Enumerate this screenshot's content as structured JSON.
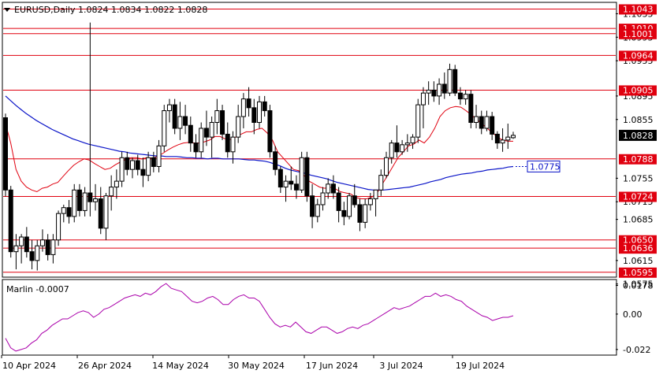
{
  "window": {
    "symbol_header": "EURUSD,Daily  1.0824 1.0834 1.0822 1.0828",
    "dropdown_icon": "triangle-down-icon"
  },
  "indicator": {
    "label": "Marlin -0.0007",
    "axis": [
      "0.0178",
      "0.00",
      "-0.022"
    ]
  },
  "colors": {
    "level_line": "#e0000f",
    "level_tag_bg": "#e0000f",
    "ma_blue": "#0a14c8",
    "ma_red": "#e0000f",
    "oscillator": "#aa00aa",
    "candle": "#000000",
    "price_tag_bg": "#000000",
    "ma_tag_border": "#0a14c8"
  },
  "chart_data": {
    "type": "candlestick",
    "symbol": "EURUSD",
    "timeframe": "Daily",
    "ylim": [
      1.0588,
      1.1053
    ],
    "price_ticks": [
      "1.1035",
      "1.0995",
      "1.0955",
      "1.0895",
      "1.0855",
      "1.0755",
      "1.0715",
      "1.0685",
      "1.0615",
      "1.0575"
    ],
    "x_labels": [
      "10 Apr 2024",
      "26 Apr 2024",
      "14 May 2024",
      "30 May 2024",
      "17 Jun 2024",
      "3 Jul 2024",
      "19 Jul 2024"
    ],
    "levels": [
      {
        "value": 1.1043,
        "label": "1.1043"
      },
      {
        "value": 1.101,
        "label": "1.1010"
      },
      {
        "value": 1.1001,
        "label": "1.1001"
      },
      {
        "value": 1.0964,
        "label": "1.0964"
      },
      {
        "value": 1.0905,
        "label": "1.0905"
      },
      {
        "value": 1.0788,
        "label": "1.0788"
      },
      {
        "value": 1.0724,
        "label": "1.0724"
      },
      {
        "value": 1.065,
        "label": "1.0650"
      },
      {
        "value": 1.0636,
        "label": "1.0636"
      },
      {
        "value": 1.0595,
        "label": "1.0595"
      }
    ],
    "current_price": {
      "value": 1.0828,
      "label": "1.0828"
    },
    "ma_tag": {
      "value": 1.0775,
      "label": "1.0775"
    },
    "candles": [
      [
        1.0858,
        1.0865,
        1.0724,
        1.0735
      ],
      [
        1.0735,
        1.0742,
        1.062,
        1.063
      ],
      [
        1.063,
        1.066,
        1.06,
        1.064
      ],
      [
        1.064,
        1.066,
        1.061,
        1.0655
      ],
      [
        1.0655,
        1.0672,
        1.062,
        1.063
      ],
      [
        1.063,
        1.065,
        1.06,
        1.0615
      ],
      [
        1.0615,
        1.065,
        1.0598,
        1.064
      ],
      [
        1.064,
        1.0668,
        1.063,
        1.065
      ],
      [
        1.065,
        1.066,
        1.0615,
        1.0625
      ],
      [
        1.0625,
        1.066,
        1.061,
        1.065
      ],
      [
        1.065,
        1.07,
        1.064,
        1.0695
      ],
      [
        1.0695,
        1.071,
        1.068,
        1.0705
      ],
      [
        1.0705,
        1.0718,
        1.0678,
        1.069
      ],
      [
        1.069,
        1.0745,
        1.068,
        1.0735
      ],
      [
        1.0735,
        1.0745,
        1.069,
        1.07
      ],
      [
        1.07,
        1.074,
        1.069,
        1.073
      ],
      [
        1.073,
        1.102,
        1.069,
        1.0715
      ],
      [
        1.0715,
        1.0745,
        1.07,
        1.072
      ],
      [
        1.072,
        1.074,
        1.066,
        1.067
      ],
      [
        1.067,
        1.073,
        1.065,
        1.0725
      ],
      [
        1.0725,
        1.076,
        1.07,
        1.074
      ],
      [
        1.074,
        1.077,
        1.072,
        1.075
      ],
      [
        1.075,
        1.08,
        1.074,
        1.079
      ],
      [
        1.079,
        1.08,
        1.076,
        1.077
      ],
      [
        1.077,
        1.079,
        1.0755,
        1.0785
      ],
      [
        1.0785,
        1.0795,
        1.076,
        1.077
      ],
      [
        1.077,
        1.079,
        1.074,
        1.076
      ],
      [
        1.076,
        1.08,
        1.075,
        1.079
      ],
      [
        1.079,
        1.08,
        1.0765,
        1.0775
      ],
      [
        1.0775,
        1.082,
        1.0765,
        1.081
      ],
      [
        1.081,
        1.088,
        1.08,
        1.087
      ],
      [
        1.087,
        1.089,
        1.085,
        1.088
      ],
      [
        1.088,
        1.089,
        1.083,
        1.084
      ],
      [
        1.084,
        1.0885,
        1.082,
        1.086
      ],
      [
        1.086,
        1.088,
        1.083,
        1.0845
      ],
      [
        1.0845,
        1.086,
        1.08,
        1.0815
      ],
      [
        1.0815,
        1.083,
        1.079,
        1.08
      ],
      [
        1.08,
        1.085,
        1.079,
        1.084
      ],
      [
        1.084,
        1.087,
        1.081,
        1.0825
      ],
      [
        1.0825,
        1.086,
        1.079,
        1.085
      ],
      [
        1.085,
        1.089,
        1.083,
        1.087
      ],
      [
        1.087,
        1.088,
        1.082,
        1.083
      ],
      [
        1.083,
        1.085,
        1.079,
        1.08
      ],
      [
        1.08,
        1.0835,
        1.078,
        1.0825
      ],
      [
        1.0825,
        1.088,
        1.0815,
        1.086
      ],
      [
        1.086,
        1.09,
        1.084,
        1.089
      ],
      [
        1.089,
        1.091,
        1.086,
        1.0875
      ],
      [
        1.0875,
        1.089,
        1.083,
        1.085
      ],
      [
        1.085,
        1.0895,
        1.084,
        1.0885
      ],
      [
        1.0885,
        1.0895,
        1.086,
        1.087
      ],
      [
        1.087,
        1.088,
        1.079,
        1.08
      ],
      [
        1.08,
        1.081,
        1.076,
        1.077
      ],
      [
        1.077,
        1.0775,
        1.073,
        1.074
      ],
      [
        1.074,
        1.076,
        1.0715,
        1.075
      ],
      [
        1.075,
        1.0775,
        1.0735,
        1.0745
      ],
      [
        1.0745,
        1.076,
        1.072,
        1.0735
      ],
      [
        1.0735,
        1.08,
        1.073,
        1.079
      ],
      [
        1.079,
        1.08,
        1.0715,
        1.0725
      ],
      [
        1.0725,
        1.0745,
        1.067,
        1.069
      ],
      [
        1.069,
        1.072,
        1.068,
        1.071
      ],
      [
        1.071,
        1.074,
        1.07,
        1.073
      ],
      [
        1.073,
        1.0755,
        1.072,
        1.0745
      ],
      [
        1.0745,
        1.076,
        1.072,
        1.073
      ],
      [
        1.073,
        1.074,
        1.068,
        1.07
      ],
      [
        1.07,
        1.0715,
        1.0675,
        1.069
      ],
      [
        1.069,
        1.073,
        1.0685,
        1.0725
      ],
      [
        1.0725,
        1.0745,
        1.0705,
        1.071
      ],
      [
        1.071,
        1.072,
        1.0665,
        1.068
      ],
      [
        1.068,
        1.072,
        1.067,
        1.071
      ],
      [
        1.071,
        1.073,
        1.07,
        1.072
      ],
      [
        1.072,
        1.0735,
        1.069,
        1.0735
      ],
      [
        1.0735,
        1.077,
        1.0725,
        1.076
      ],
      [
        1.076,
        1.08,
        1.0755,
        1.079
      ],
      [
        1.079,
        1.082,
        1.078,
        1.0815
      ],
      [
        1.0815,
        1.0845,
        1.079,
        1.08
      ],
      [
        1.08,
        1.082,
        1.0795,
        1.0812
      ],
      [
        1.0812,
        1.083,
        1.08,
        1.0815
      ],
      [
        1.0815,
        1.083,
        1.0805,
        1.0825
      ],
      [
        1.0825,
        1.089,
        1.0815,
        1.088
      ],
      [
        1.088,
        1.091,
        1.084,
        1.09
      ],
      [
        1.09,
        1.092,
        1.088,
        1.0905
      ],
      [
        1.0905,
        1.092,
        1.0885,
        1.0895
      ],
      [
        1.0895,
        1.0925,
        1.088,
        1.0915
      ],
      [
        1.0915,
        1.0935,
        1.089,
        1.09
      ],
      [
        1.09,
        1.095,
        1.0895,
        1.094
      ],
      [
        1.094,
        1.0948,
        1.0895,
        1.09
      ],
      [
        1.09,
        1.091,
        1.088,
        1.089
      ],
      [
        1.089,
        1.0905,
        1.088,
        1.0898
      ],
      [
        1.0898,
        1.0905,
        1.084,
        1.085
      ],
      [
        1.085,
        1.088,
        1.084,
        1.086
      ],
      [
        1.086,
        1.087,
        1.083,
        1.084
      ],
      [
        1.084,
        1.087,
        1.0835,
        1.086
      ],
      [
        1.086,
        1.0868,
        1.082,
        1.083
      ],
      [
        1.083,
        1.0835,
        1.0805,
        1.0815
      ],
      [
        1.0815,
        1.084,
        1.08,
        1.082
      ],
      [
        1.082,
        1.0848,
        1.0805,
        1.0825
      ],
      [
        1.0824,
        1.0834,
        1.0822,
        1.0828
      ]
    ],
    "ma_fast": [
      1.0848,
      1.0815,
      1.077,
      1.075,
      1.074,
      1.0735,
      1.0732,
      1.0738,
      1.074,
      1.0745,
      1.0748,
      1.0758,
      1.0768,
      1.0777,
      1.0783,
      1.0788,
      1.0786,
      1.078,
      1.0775,
      1.077,
      1.0772,
      1.0778,
      1.0783,
      1.0787,
      1.079,
      1.079,
      1.0788,
      1.079,
      1.0789,
      1.0792,
      1.0797,
      1.0803,
      1.0808,
      1.0812,
      1.0815,
      1.0816,
      1.0815,
      1.0815,
      1.0817,
      1.082,
      1.0826,
      1.0826,
      1.0822,
      1.0821,
      1.0825,
      1.083,
      1.0834,
      1.0834,
      1.0838,
      1.084,
      1.0832,
      1.082,
      1.08,
      1.079,
      1.078,
      1.077,
      1.0768,
      1.076,
      1.075,
      1.0745,
      1.074,
      1.0738,
      1.074,
      1.0737,
      1.0732,
      1.073,
      1.0728,
      1.0722,
      1.072,
      1.072,
      1.0723,
      1.073,
      1.0745,
      1.076,
      1.0775,
      1.079,
      1.08,
      1.081,
      1.0813,
      1.082,
      1.0815,
      1.0825,
      1.084,
      1.086,
      1.087,
      1.0875,
      1.0877,
      1.0876,
      1.087,
      1.0863,
      1.0855,
      1.0848,
      1.084,
      1.0833,
      1.0825,
      1.082,
      1.0818,
      1.0818
    ],
    "ma_slow": [
      1.0895,
      1.0887,
      1.0879,
      1.0872,
      1.0865,
      1.0859,
      1.0853,
      1.0848,
      1.0843,
      1.0838,
      1.0834,
      1.083,
      1.0826,
      1.0822,
      1.0819,
      1.0816,
      1.0813,
      1.0811,
      1.0809,
      1.0807,
      1.0805,
      1.0803,
      1.0801,
      1.08,
      1.0798,
      1.0797,
      1.0796,
      1.0795,
      1.0794,
      1.0793,
      1.0793,
      1.0792,
      1.0792,
      1.0792,
      1.0791,
      1.079,
      1.079,
      1.0789,
      1.0789,
      1.0788,
      1.0789,
      1.0789,
      1.0788,
      1.0788,
      1.0788,
      1.0788,
      1.0787,
      1.0786,
      1.0786,
      1.0785,
      1.0784,
      1.0782,
      1.0779,
      1.0776,
      1.0772,
      1.0769,
      1.0767,
      1.0765,
      1.0763,
      1.076,
      1.0758,
      1.0756,
      1.0754,
      1.0751,
      1.0748,
      1.0746,
      1.0744,
      1.0742,
      1.074,
      1.0738,
      1.0736,
      1.0735,
      1.0735,
      1.0735,
      1.0736,
      1.0737,
      1.0738,
      1.0739,
      1.074,
      1.0742,
      1.0744,
      1.0746,
      1.0749,
      1.0751,
      1.0753,
      1.0756,
      1.0758,
      1.076,
      1.0762,
      1.0763,
      1.0764,
      1.0766,
      1.0767,
      1.0769,
      1.077,
      1.0771,
      1.0772,
      1.0774,
      1.0775
    ],
    "oscillator": {
      "name": "Marlin",
      "ylim": [
        -0.025,
        0.021
      ],
      "values": [
        -0.015,
        -0.021,
        -0.023,
        -0.022,
        -0.021,
        -0.018,
        -0.016,
        -0.012,
        -0.01,
        -0.007,
        -0.005,
        -0.003,
        -0.003,
        -0.001,
        0.001,
        0.002,
        0.001,
        -0.002,
        0.0,
        0.003,
        0.004,
        0.006,
        0.008,
        0.01,
        0.011,
        0.012,
        0.011,
        0.013,
        0.012,
        0.014,
        0.017,
        0.019,
        0.016,
        0.015,
        0.014,
        0.011,
        0.008,
        0.007,
        0.008,
        0.01,
        0.011,
        0.009,
        0.006,
        0.006,
        0.009,
        0.011,
        0.012,
        0.01,
        0.01,
        0.008,
        0.003,
        -0.002,
        -0.006,
        -0.008,
        -0.007,
        -0.008,
        -0.005,
        -0.008,
        -0.011,
        -0.012,
        -0.01,
        -0.008,
        -0.008,
        -0.01,
        -0.012,
        -0.011,
        -0.009,
        -0.008,
        -0.009,
        -0.007,
        -0.006,
        -0.004,
        -0.002,
        0.0,
        0.002,
        0.004,
        0.003,
        0.004,
        0.005,
        0.007,
        0.009,
        0.011,
        0.011,
        0.013,
        0.011,
        0.012,
        0.011,
        0.009,
        0.008,
        0.005,
        0.003,
        0.001,
        -0.001,
        -0.002,
        -0.004,
        -0.003,
        -0.002,
        -0.002,
        -0.001
      ]
    }
  }
}
